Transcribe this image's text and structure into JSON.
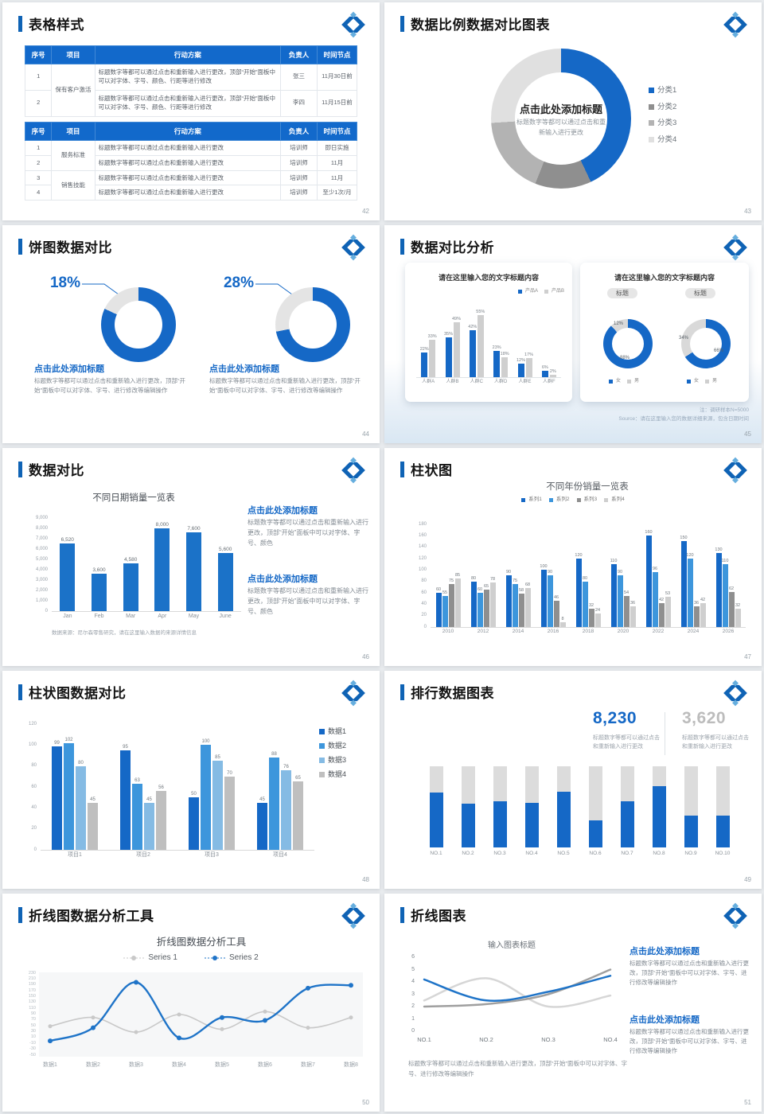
{
  "colors": {
    "accent": "#1568c6",
    "accent_dark": "#0f63b5",
    "blue2": "#3d96dc",
    "blue3": "#85bbe4",
    "gray_dark": "#8f8f8f",
    "gray_mid": "#b3b3b3",
    "gray_light": "#e0e0e0",
    "bar_gray": "#cfcfcf",
    "track": "#dcdcdc",
    "num_gray": "#bcbcbc",
    "line_gray": "#c9c9c9",
    "line_dark": "#9f9f9f",
    "line_lightest": "#d6d6d6"
  },
  "common": {
    "add_title": "点击此处添加标题",
    "edit_short": "标题数字等都可以通过点击和重新输入进行更改",
    "edit_font": "标题数字等都可以通过点击和重新输入进行更改，顶部“开始”面板中可以对字体、字号、进行修改等编辑操作",
    "edit_color": "标题数字等都可以通过点击和重新输入进行更改，顶部“开始”面板中可以对字体、字号、颜色",
    "edit_table": "标题数字等都可以通过点击和重新输入进行更改，顶部“开始”面板中可以对字体、字号、颜色、行距等进行修改"
  },
  "slides": {
    "s42": {
      "title": "表格样式",
      "page": "42",
      "table1": {
        "headers": [
          "序号",
          "项目",
          "行动方案",
          "负责人",
          "时间节点"
        ],
        "rows": [
          [
            "1",
            {
              "text": "保有客户激活",
              "rowspan": 2
            },
            "标题数字等都可以通过点击和重新输入进行更改，顶部“开始”面板中可以对字体、字号、颜色、行距等进行修改",
            "张三",
            "11月30日前"
          ],
          [
            "2",
            null,
            "标题数字等都可以通过点击和重新输入进行更改，顶部“开始”面板中可以对字体、字号、颜色、行距等进行修改",
            "李四",
            "11月15日前"
          ]
        ]
      },
      "table2": {
        "headers": [
          "序号",
          "项目",
          "行动方案",
          "负责人",
          "时间节点"
        ],
        "rows": [
          [
            "1",
            {
              "text": "服务标准",
              "rowspan": 2
            },
            "标题数字等都可以通过点击和重新输入进行更改",
            "培训师",
            "即日实施"
          ],
          [
            "2",
            null,
            "标题数字等都可以通过点击和重新输入进行更改",
            "培训师",
            "11月"
          ],
          [
            "3",
            {
              "text": "销售技能",
              "rowspan": 2
            },
            "标题数字等都可以通过点击和重新输入进行更改",
            "培训师",
            "11月"
          ],
          [
            "4",
            null,
            "标题数字等都可以通过点击和重新输入进行更改",
            "培训师",
            "至少1次/月"
          ]
        ]
      }
    },
    "s43": {
      "title": "数据比例数据对比图表",
      "page": "43",
      "donut": {
        "segments": [
          {
            "label": "分类1",
            "pct": 43,
            "color": "#1568c6"
          },
          {
            "label": "分类2",
            "pct": 13,
            "color": "#8f8f8f"
          },
          {
            "label": "分类3",
            "pct": 18,
            "color": "#b3b3b3"
          },
          {
            "label": "分类4",
            "pct": 26,
            "color": "#e0e0e0"
          }
        ]
      }
    },
    "s44": {
      "title": "饼图数据对比",
      "page": "44",
      "items": [
        {
          "label": "18%",
          "gray_pct": 18
        },
        {
          "label": "28%",
          "gray_pct": 28
        }
      ]
    },
    "s45": {
      "title": "数据对比分析",
      "page": "45",
      "left": {
        "card_title": "请在这里输入您的文字标题内容",
        "chart": {
          "categories": [
            "人群A",
            "人群B",
            "人群C",
            "人群D",
            "人群E",
            "人群F"
          ],
          "series": [
            {
              "name": "产品A",
              "color": "#1568c6",
              "values": [
                22,
                35,
                42,
                23,
                12,
                6
              ]
            },
            {
              "name": "产品B",
              "color": "#cfcfcf",
              "values": [
                33,
                49,
                55,
                18,
                17,
                2
              ]
            }
          ]
        }
      },
      "right": {
        "card_title": "请在这里输入您的文字标题内容",
        "badge": "标题",
        "legend": [
          {
            "label": "女",
            "color": "#1568c6"
          },
          {
            "label": "男",
            "color": "#cfcfcf"
          }
        ],
        "donuts": [
          {
            "primary_pct": 88,
            "secondary_pct": 12,
            "primary_label": "88%",
            "secondary_label": "12%"
          },
          {
            "primary_pct": 66,
            "secondary_pct": 34,
            "primary_label": "66%",
            "secondary_label": "34%"
          }
        ]
      },
      "note1": "注：调研样本N=5000",
      "note2": "Source：请在这里输入您的数据详细来源，包含日期时间"
    },
    "s46": {
      "title": "数据对比",
      "page": "46",
      "chart": {
        "title": "不同日期销量一览表",
        "color": "#1b72c8",
        "ymax": 9000,
        "tick_step": 1000,
        "categories": [
          "Jan",
          "Feb",
          "Mar",
          "Apr",
          "May",
          "June"
        ],
        "values": [
          6520,
          3600,
          4580,
          8000,
          7600,
          5600
        ]
      },
      "source": "数据来源：尼尔森零售研究，请在这里输入数据的来源详情信息"
    },
    "s47": {
      "title": "柱状图",
      "page": "47",
      "chart": {
        "title": "不同年份销量一览表",
        "ymax": 180,
        "tick_step": 20,
        "categories": [
          "2010",
          "2012",
          "2014",
          "2016",
          "2018",
          "2020",
          "2022",
          "2024",
          "2026"
        ],
        "series": [
          {
            "name": "系列1",
            "color": "#1568c6",
            "values": [
              60,
              80,
              90,
              100,
              120,
              110,
              160,
              150,
              130
            ]
          },
          {
            "name": "系列2",
            "color": "#3d96dc",
            "values": [
              55,
              60,
              75,
              90,
              80,
              90,
              96,
              120,
              110
            ]
          },
          {
            "name": "系列3",
            "color": "#8f8f8f",
            "values": [
              75,
              65,
              58,
              46,
              32,
              54,
              42,
              36,
              62
            ]
          },
          {
            "name": "系列4",
            "color": "#cfcfcf",
            "values": [
              85,
              78,
              68,
              8,
              24,
              36,
              53,
              42,
              32
            ]
          }
        ]
      }
    },
    "s48": {
      "title": "柱状图数据对比",
      "page": "48",
      "chart": {
        "ymax": 120,
        "tick_step": 20,
        "categories": [
          "项目1",
          "项目2",
          "项目3",
          "项目4"
        ],
        "series": [
          {
            "name": "数据1",
            "color": "#1568c6",
            "values": [
              99,
              95,
              50,
              45
            ]
          },
          {
            "name": "数据2",
            "color": "#3d96dc",
            "values": [
              102,
              63,
              100,
              88
            ]
          },
          {
            "name": "数据3",
            "color": "#85bbe4",
            "values": [
              80,
              45,
              85,
              76
            ]
          },
          {
            "name": "数据4",
            "color": "#bfbfbf",
            "values": [
              45,
              56,
              70,
              65
            ]
          }
        ]
      }
    },
    "s49": {
      "title": "排行数据图表",
      "page": "49",
      "stats": [
        {
          "value": "8,230",
          "color": "#1568c6"
        },
        {
          "value": "3,620",
          "color": "#bcbcbc"
        }
      ],
      "ranks": {
        "categories": [
          "NO.1",
          "NO.2",
          "NO.3",
          "NO.4",
          "NO.5",
          "NO.6",
          "NO.7",
          "NO.8",
          "NO.9",
          "NO.10"
        ],
        "fill_pct": [
          68,
          54,
          57,
          55,
          69,
          33,
          57,
          75,
          39,
          39
        ]
      }
    },
    "s50": {
      "title": "折线图数据分析工具",
      "page": "50",
      "chart": {
        "title": "折线图数据分析工具",
        "ymin": -50,
        "ymax": 230,
        "tick_step": 20,
        "x": [
          "数据1",
          "数据2",
          "数据3",
          "数据4",
          "数据5",
          "数据6",
          "数据7",
          "数据8"
        ],
        "series": [
          {
            "name": "Series 1",
            "color": "#c9c9c9",
            "values": [
              50,
              80,
              30,
              90,
              40,
              100,
              45,
              80
            ]
          },
          {
            "name": "Series 2",
            "color": "#1f74c8",
            "values": [
              0,
              45,
              200,
              10,
              80,
              70,
              180,
              190
            ]
          }
        ]
      }
    },
    "s51": {
      "title": "折线图表",
      "page": "51",
      "chart": {
        "title": "输入图表标题",
        "ymin": 0,
        "ymax": 6,
        "x": [
          "NO.1",
          "NO.2",
          "NO.3",
          "NO.4"
        ],
        "lines": [
          {
            "name": "line-light-gray",
            "color": "#d6d6d6",
            "values": [
              2.5,
              4.3,
              2.0,
              2.9
            ]
          },
          {
            "name": "line-dark-gray",
            "color": "#9f9f9f",
            "values": [
              2.0,
              2.2,
              3.0,
              5.0
            ]
          },
          {
            "name": "line-blue",
            "color": "#1f74c8",
            "values": [
              4.2,
              2.5,
              3.2,
              4.5
            ]
          }
        ]
      }
    }
  },
  "chart_data": [
    {
      "slide": 43,
      "type": "pie",
      "style": "donut",
      "labels": [
        "分类1",
        "分类2",
        "分类3",
        "分类4"
      ],
      "values": [
        43,
        13,
        18,
        26
      ],
      "unit": "percent",
      "legend_position": "right"
    },
    {
      "slide": 44,
      "type": "pie",
      "style": "donut",
      "title": "饼图数据对比",
      "charts": [
        {
          "callout": "18%",
          "values": [
            82,
            18
          ]
        },
        {
          "callout": "28%",
          "values": [
            72,
            28
          ]
        }
      ]
    },
    {
      "slide": 45,
      "type": "bar",
      "title": "请在这里输入您的文字标题内容",
      "categories": [
        "人群A",
        "人群B",
        "人群C",
        "人群D",
        "人群E",
        "人群F"
      ],
      "series": [
        {
          "name": "产品A",
          "values": [
            22,
            35,
            42,
            23,
            12,
            6
          ]
        },
        {
          "name": "产品B",
          "values": [
            33,
            49,
            55,
            18,
            17,
            2
          ]
        }
      ],
      "unit": "percent"
    },
    {
      "slide": 45,
      "type": "pie",
      "style": "donut",
      "title": "请在这里输入您的文字标题内容",
      "charts": [
        {
          "legend": [
            "女",
            "男"
          ],
          "values": [
            88,
            12
          ]
        },
        {
          "legend": [
            "女",
            "男"
          ],
          "values": [
            66,
            34
          ]
        }
      ]
    },
    {
      "slide": 46,
      "type": "bar",
      "title": "不同日期销量一览表",
      "categories": [
        "Jan",
        "Feb",
        "Mar",
        "Apr",
        "May",
        "June"
      ],
      "values": [
        6520,
        3600,
        4580,
        8000,
        7600,
        5600
      ],
      "ylim": [
        0,
        9000
      ]
    },
    {
      "slide": 47,
      "type": "bar",
      "title": "不同年份销量一览表",
      "categories": [
        "2010",
        "2012",
        "2014",
        "2016",
        "2018",
        "2020",
        "2022",
        "2024",
        "2026"
      ],
      "series": [
        {
          "name": "系列1",
          "values": [
            60,
            80,
            90,
            100,
            120,
            110,
            160,
            150,
            130
          ]
        },
        {
          "name": "系列2",
          "values": [
            55,
            60,
            75,
            90,
            80,
            90,
            96,
            120,
            110
          ]
        },
        {
          "name": "系列3",
          "values": [
            75,
            65,
            58,
            46,
            32,
            54,
            42,
            36,
            62
          ]
        },
        {
          "name": "系列4",
          "values": [
            85,
            78,
            68,
            8,
            24,
            36,
            53,
            42,
            32
          ]
        }
      ],
      "ylim": [
        0,
        180
      ]
    },
    {
      "slide": 48,
      "type": "bar",
      "categories": [
        "项目1",
        "项目2",
        "项目3",
        "项目4"
      ],
      "series": [
        {
          "name": "数据1",
          "values": [
            99,
            95,
            50,
            45
          ]
        },
        {
          "name": "数据2",
          "values": [
            102,
            63,
            100,
            88
          ]
        },
        {
          "name": "数据3",
          "values": [
            80,
            45,
            85,
            76
          ]
        },
        {
          "name": "数据4",
          "values": [
            45,
            56,
            70,
            65
          ]
        }
      ],
      "ylim": [
        0,
        120
      ],
      "legend_position": "right"
    },
    {
      "slide": 49,
      "type": "bar",
      "style": "progress-columns",
      "categories": [
        "NO.1",
        "NO.2",
        "NO.3",
        "NO.4",
        "NO.5",
        "NO.6",
        "NO.7",
        "NO.8",
        "NO.9",
        "NO.10"
      ],
      "values": [
        68,
        54,
        57,
        55,
        69,
        33,
        57,
        75,
        39,
        39
      ],
      "unit": "percent-of-track",
      "stats": [
        "8,230",
        "3,620"
      ]
    },
    {
      "slide": 50,
      "type": "line",
      "title": "折线图数据分析工具",
      "x": [
        "数据1",
        "数据2",
        "数据3",
        "数据4",
        "数据5",
        "数据6",
        "数据7",
        "数据8"
      ],
      "series": [
        {
          "name": "Series 1",
          "values": [
            50,
            80,
            30,
            90,
            40,
            100,
            45,
            80
          ]
        },
        {
          "name": "Series 2",
          "values": [
            0,
            45,
            200,
            10,
            80,
            70,
            180,
            190
          ]
        }
      ],
      "ylim": [
        -50,
        230
      ],
      "grid": false,
      "legend_position": "top"
    },
    {
      "slide": 51,
      "type": "line",
      "title": "输入图表标题",
      "x": [
        "NO.1",
        "NO.2",
        "NO.3",
        "NO.4"
      ],
      "series": [
        {
          "name": "blue",
          "values": [
            4.2,
            2.5,
            3.2,
            4.5
          ]
        },
        {
          "name": "dark-gray",
          "values": [
            2.0,
            2.2,
            3.0,
            5.0
          ]
        },
        {
          "name": "light-gray",
          "values": [
            2.5,
            4.3,
            2.0,
            2.9
          ]
        }
      ],
      "ylim": [
        0,
        6
      ]
    }
  ]
}
